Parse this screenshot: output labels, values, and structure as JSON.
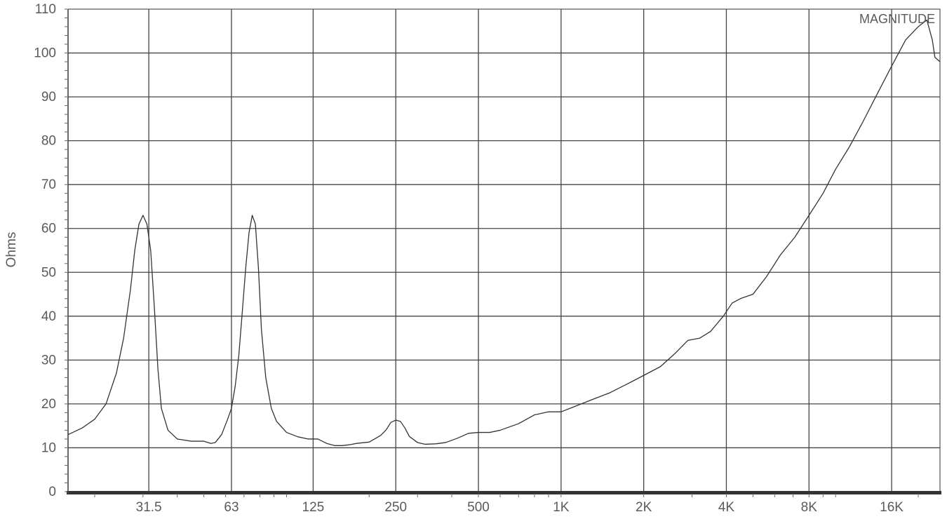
{
  "chart_data": {
    "type": "line",
    "title": "",
    "xlabel": "",
    "ylabel": "Ohms",
    "x_scale": "log",
    "xlim": [
      16,
      24000
    ],
    "ylim": [
      0,
      110
    ],
    "grid": true,
    "legend_position": "top-right",
    "x_ticks": [
      {
        "value": 31.5,
        "label": "31.5"
      },
      {
        "value": 63,
        "label": "63"
      },
      {
        "value": 125,
        "label": "125"
      },
      {
        "value": 250,
        "label": "250"
      },
      {
        "value": 500,
        "label": "500"
      },
      {
        "value": 1000,
        "label": "1K"
      },
      {
        "value": 2000,
        "label": "2K"
      },
      {
        "value": 4000,
        "label": "4K"
      },
      {
        "value": 8000,
        "label": "8K"
      },
      {
        "value": 16000,
        "label": "16K"
      }
    ],
    "y_ticks": [
      0,
      10,
      20,
      30,
      40,
      50,
      60,
      70,
      80,
      90,
      100,
      110
    ],
    "series": [
      {
        "name": "MAGNITUDE",
        "color": "#333333",
        "x": [
          16,
          18,
          20,
          22,
          24,
          25.5,
          27,
          28,
          29,
          30,
          31,
          32,
          33,
          34,
          35,
          37,
          40,
          45,
          50,
          53,
          55,
          58,
          61,
          63,
          65,
          67,
          69,
          71,
          73,
          75,
          77,
          79,
          81,
          84,
          88,
          92,
          100,
          110,
          120,
          130,
          140,
          150,
          160,
          170,
          180,
          200,
          220,
          230,
          240,
          250,
          260,
          270,
          280,
          300,
          320,
          350,
          380,
          420,
          460,
          500,
          550,
          600,
          700,
          800,
          900,
          1000,
          1100,
          1300,
          1500,
          1800,
          2000,
          2300,
          2600,
          2900,
          3200,
          3500,
          3900,
          4200,
          4500,
          5000,
          5600,
          6300,
          7100,
          8000,
          9000,
          10000,
          11200,
          12500,
          14000,
          16000,
          18000,
          20000,
          21500,
          22500,
          23000,
          24000
        ],
        "y": [
          13,
          14.5,
          16.5,
          20,
          27,
          35,
          46,
          55,
          61,
          63,
          61,
          55,
          42,
          28,
          19,
          14,
          12,
          11.5,
          11.5,
          11,
          11.2,
          13,
          16.5,
          19,
          24,
          31,
          41,
          51,
          59,
          63,
          61,
          51,
          37,
          26,
          19,
          16,
          13.5,
          12.5,
          12,
          12,
          11,
          10.5,
          10.5,
          10.7,
          11,
          11.3,
          12.8,
          14,
          15.8,
          16.3,
          16,
          14.5,
          12.6,
          11.2,
          10.8,
          10.9,
          11.2,
          12.2,
          13.3,
          13.5,
          13.5,
          14,
          15.5,
          17.5,
          18.2,
          18.2,
          19.2,
          21,
          22.5,
          25,
          26.5,
          28.5,
          31.5,
          34.5,
          35,
          36.5,
          40,
          43,
          44,
          45,
          49,
          54,
          58,
          63,
          68,
          73.5,
          78.5,
          84,
          90,
          97,
          103,
          106,
          107.5,
          103,
          99,
          98
        ]
      }
    ]
  }
}
